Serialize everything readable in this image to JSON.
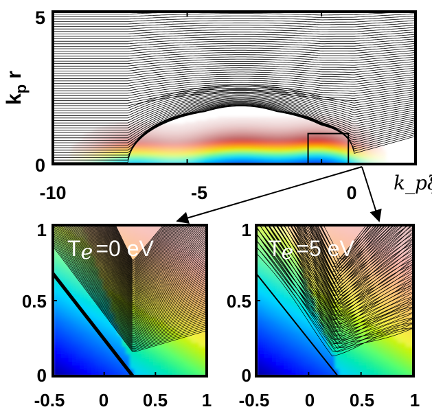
{
  "chart_data": [
    {
      "type": "heatmap",
      "panel": "top",
      "x": {
        "range": [
          -10,
          3.5
        ],
        "ticks": [
          "-10",
          "-5",
          "0"
        ],
        "label": "k_pξ"
      },
      "y": {
        "range": [
          0,
          5
        ],
        "ticks": [
          "0",
          "5"
        ],
        "label_main": "k",
        "label_sub": "p",
        "label_tail": "r"
      },
      "box": {
        "x": [
          -0.5,
          1
        ],
        "y": [
          0,
          1
        ]
      },
      "colormap": "jet, white at zero",
      "field": [
        {
          "center": 0.0,
          "width": 1.4,
          "amplitude": 1.0
        },
        {
          "center": -3.0,
          "width": 2.0,
          "amplitude": 1.0
        },
        {
          "center": -7.0,
          "width": 1.6,
          "amplitude": 0.55
        }
      ],
      "trajectories": {
        "count": 62,
        "bubble_center": -3.0,
        "bubble_half_width": 4.2,
        "bubble_height": 1.9
      }
    },
    {
      "type": "heatmap",
      "panel": "bottom-left",
      "annotation_main": "T",
      "annotation_sub": "e",
      "annotation_tail": "=0 eV",
      "x": {
        "range": [
          -0.5,
          1
        ],
        "ticks": [
          "-0.5",
          "0",
          "0.5",
          "1"
        ]
      },
      "y": {
        "range": [
          0,
          1
        ],
        "ticks": [
          "0",
          "0.5",
          "1"
        ]
      },
      "temperature_eV": 0,
      "trajectories": {
        "count": 85,
        "spread": 0.0
      }
    },
    {
      "type": "heatmap",
      "panel": "bottom-right",
      "annotation_main": "T",
      "annotation_sub": "e",
      "annotation_tail": "=5 eV",
      "x": {
        "range": [
          -0.5,
          1
        ],
        "ticks": [
          "-0.5",
          "0",
          "0.5",
          "1"
        ]
      },
      "y": {
        "range": [
          0,
          1
        ],
        "ticks": [
          "0",
          "0.5",
          "1"
        ]
      },
      "temperature_eV": 5,
      "trajectories": {
        "count": 85,
        "spread": 0.18
      }
    }
  ]
}
